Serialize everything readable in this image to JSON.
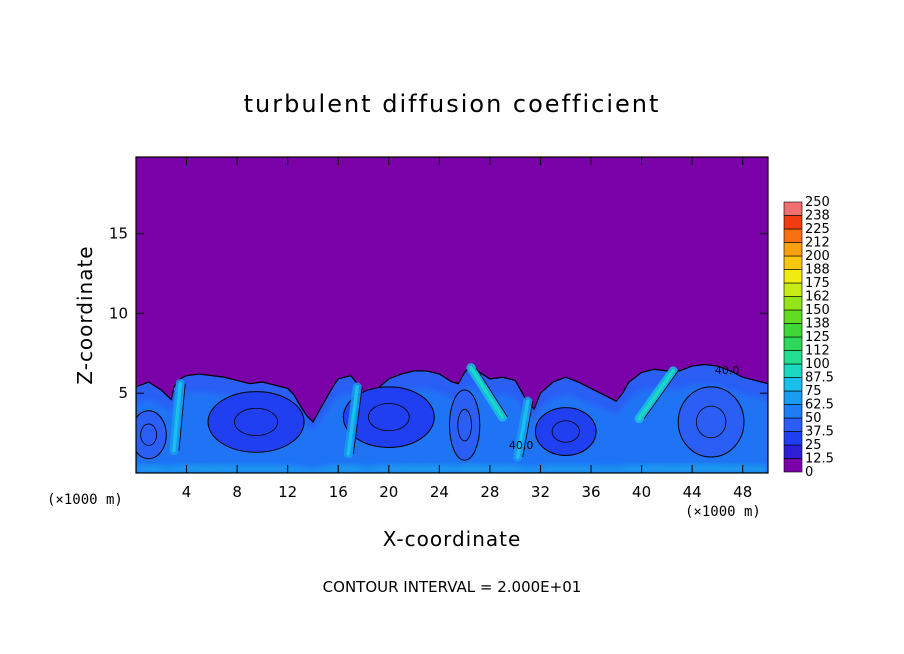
{
  "chart_data": {
    "type": "heatmap",
    "title": "turbulent diffusion coefficient",
    "xlabel": "X-coordinate",
    "ylabel": "Z-coordinate",
    "x_unit": "(×1000 m)",
    "z_unit": "(×1000 m)",
    "xlim": [
      0,
      50
    ],
    "ylim": [
      0,
      19.8
    ],
    "xticks": [
      4,
      8,
      12,
      16,
      20,
      24,
      28,
      32,
      36,
      40,
      44,
      48
    ],
    "yticks": [
      5,
      10,
      15
    ],
    "contour_interval_label": "CONTOUR INTERVAL = 2.000E+01",
    "contour_labels": [
      "40.0",
      "40.0"
    ],
    "colorbar": {
      "levels": [
        "0",
        "12.5",
        "25",
        "37.5",
        "50",
        "62.5",
        "75",
        "87.5",
        "100",
        "112",
        "125",
        "138",
        "150",
        "162",
        "175",
        "188",
        "200",
        "212",
        "225",
        "238",
        "250"
      ],
      "colors": [
        "#7a00a8",
        "#2d1fd6",
        "#1f3ff0",
        "#2a5ef5",
        "#1e7cf5",
        "#1a9cf2",
        "#18c0ea",
        "#1ad9c0",
        "#22e090",
        "#2ed85c",
        "#3fd838",
        "#62dc22",
        "#94e41a",
        "#c8ec16",
        "#f0ec10",
        "#f8c810",
        "#f8a010",
        "#f87010",
        "#f03c10",
        "#f07070"
      ]
    },
    "boundary_layer_top": [
      [
        0,
        5.4
      ],
      [
        1,
        5.7
      ],
      [
        2,
        5.2
      ],
      [
        2.8,
        4.6
      ],
      [
        3,
        5.4
      ],
      [
        3.5,
        5.9
      ],
      [
        4,
        6.1
      ],
      [
        5,
        6.2
      ],
      [
        6,
        6.1
      ],
      [
        7,
        6.0
      ],
      [
        8,
        5.8
      ],
      [
        9,
        5.6
      ],
      [
        10,
        5.7
      ],
      [
        11,
        5.5
      ],
      [
        12,
        5.3
      ],
      [
        12.5,
        4.9
      ],
      [
        13,
        4.2
      ],
      [
        13.5,
        3.6
      ],
      [
        14,
        3.2
      ],
      [
        14.5,
        3.9
      ],
      [
        15,
        4.6
      ],
      [
        15.5,
        5.3
      ],
      [
        16,
        5.9
      ],
      [
        17,
        6.1
      ],
      [
        17.5,
        5.6
      ],
      [
        18,
        4.7
      ],
      [
        18.5,
        4.2
      ],
      [
        19,
        5.2
      ],
      [
        20,
        5.9
      ],
      [
        21,
        6.2
      ],
      [
        22,
        6.4
      ],
      [
        23,
        6.4
      ],
      [
        24,
        6.2
      ],
      [
        25,
        5.7
      ],
      [
        25.5,
        5.6
      ],
      [
        26,
        6.3
      ],
      [
        26.5,
        6.7
      ],
      [
        27,
        6.4
      ],
      [
        28,
        5.9
      ],
      [
        29,
        6.0
      ],
      [
        30,
        5.8
      ],
      [
        30.5,
        5.1
      ],
      [
        31,
        4.4
      ],
      [
        31.5,
        4.0
      ],
      [
        32,
        5.0
      ],
      [
        33,
        5.7
      ],
      [
        34,
        6.0
      ],
      [
        35,
        5.7
      ],
      [
        36,
        5.3
      ],
      [
        37,
        4.9
      ],
      [
        38,
        4.5
      ],
      [
        38.5,
        5.0
      ],
      [
        39,
        5.7
      ],
      [
        40,
        6.3
      ],
      [
        41,
        6.5
      ],
      [
        42,
        6.4
      ],
      [
        43,
        6.4
      ],
      [
        44,
        6.7
      ],
      [
        45,
        6.8
      ],
      [
        46,
        6.7
      ],
      [
        47,
        6.4
      ],
      [
        48,
        6.0
      ],
      [
        49,
        5.8
      ],
      [
        50,
        5.6
      ]
    ],
    "eddies": [
      {
        "x": 9.5,
        "z": 3.2,
        "rx": 3.8,
        "rz": 1.9,
        "level": 2
      },
      {
        "x": 20.0,
        "z": 3.5,
        "rx": 3.6,
        "rz": 1.9,
        "level": 2
      },
      {
        "x": 34.0,
        "z": 2.6,
        "rx": 2.4,
        "rz": 1.5,
        "level": 2
      },
      {
        "x": 45.5,
        "z": 3.2,
        "rx": 2.6,
        "rz": 2.2,
        "level": 3
      },
      {
        "x": 1.0,
        "z": 2.4,
        "rx": 1.4,
        "rz": 1.5,
        "level": 3
      },
      {
        "x": 26.0,
        "z": 3.0,
        "rx": 1.2,
        "rz": 2.2,
        "level": 3
      }
    ],
    "plumes": [
      {
        "x0": 26.5,
        "z0": 6.6,
        "x1": 29.0,
        "z1": 3.5,
        "level": 7
      },
      {
        "x0": 42.5,
        "z0": 6.4,
        "x1": 39.8,
        "z1": 3.4,
        "level": 7
      },
      {
        "x0": 3.5,
        "z0": 5.6,
        "x1": 3.0,
        "z1": 1.4,
        "level": 6
      },
      {
        "x0": 17.5,
        "z0": 5.4,
        "x1": 16.8,
        "z1": 1.2,
        "level": 6
      },
      {
        "x0": 31.0,
        "z0": 4.5,
        "x1": 30.2,
        "z1": 1.0,
        "level": 6
      }
    ]
  }
}
